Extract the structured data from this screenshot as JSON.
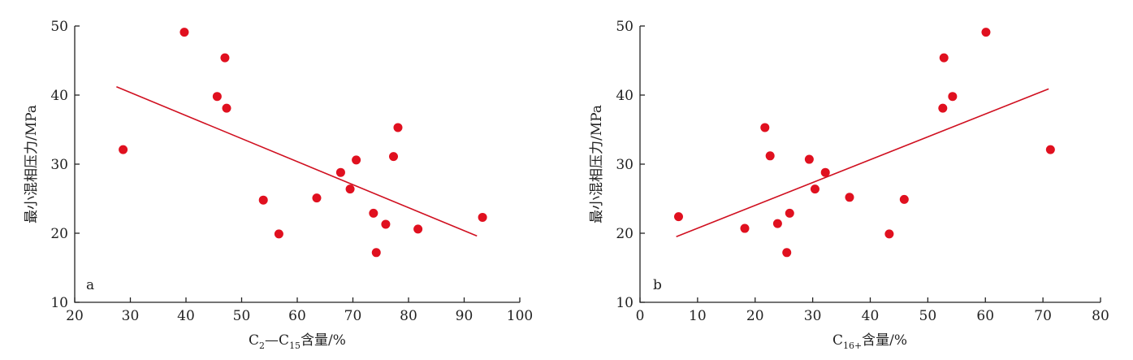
{
  "chart_data": [
    {
      "type": "scatter",
      "panel_label": "a",
      "xlabel_parts": {
        "main": "C",
        "sub1": "2",
        "dash": "—C",
        "sub2": "15",
        "rest": "含量/%"
      },
      "ylabel": "最小混相压力/MPa",
      "xlim": [
        20,
        100
      ],
      "ylim": [
        10,
        50
      ],
      "xticks": [
        20,
        30,
        40,
        50,
        60,
        70,
        80,
        90,
        100
      ],
      "yticks": [
        10,
        20,
        30,
        40,
        50
      ],
      "points": [
        {
          "x": 28.7,
          "y": 32.1
        },
        {
          "x": 39.7,
          "y": 49.1
        },
        {
          "x": 45.6,
          "y": 39.8
        },
        {
          "x": 47.0,
          "y": 45.4
        },
        {
          "x": 47.3,
          "y": 38.1
        },
        {
          "x": 53.9,
          "y": 24.8
        },
        {
          "x": 56.7,
          "y": 19.9
        },
        {
          "x": 63.5,
          "y": 25.1
        },
        {
          "x": 67.8,
          "y": 28.8
        },
        {
          "x": 69.5,
          "y": 26.4
        },
        {
          "x": 70.6,
          "y": 30.6
        },
        {
          "x": 73.7,
          "y": 22.9
        },
        {
          "x": 74.2,
          "y": 17.2
        },
        {
          "x": 75.9,
          "y": 21.3
        },
        {
          "x": 77.3,
          "y": 31.1
        },
        {
          "x": 78.1,
          "y": 35.3
        },
        {
          "x": 81.7,
          "y": 20.6
        },
        {
          "x": 93.3,
          "y": 22.3
        }
      ],
      "trendline": {
        "x": [
          27.5,
          92.3
        ],
        "y": [
          41.2,
          19.6
        ]
      },
      "grid": false,
      "point_color": "#e0101f",
      "line_color": "#d01020"
    },
    {
      "type": "scatter",
      "panel_label": "b",
      "xlabel_parts": {
        "main": "C",
        "sub1": "16+",
        "dash": "",
        "sub2": "",
        "rest": "含量/%"
      },
      "ylabel": "最小混相压力/MPa",
      "xlim": [
        0,
        80
      ],
      "ylim": [
        10,
        50
      ],
      "xticks": [
        0,
        10,
        20,
        30,
        40,
        50,
        60,
        70,
        80
      ],
      "yticks": [
        10,
        20,
        30,
        40,
        50
      ],
      "points": [
        {
          "x": 6.7,
          "y": 22.4
        },
        {
          "x": 18.2,
          "y": 20.7
        },
        {
          "x": 21.7,
          "y": 35.3
        },
        {
          "x": 22.6,
          "y": 31.2
        },
        {
          "x": 23.9,
          "y": 21.4
        },
        {
          "x": 25.5,
          "y": 17.2
        },
        {
          "x": 26.0,
          "y": 22.9
        },
        {
          "x": 29.4,
          "y": 30.7
        },
        {
          "x": 30.4,
          "y": 26.4
        },
        {
          "x": 32.2,
          "y": 28.8
        },
        {
          "x": 36.4,
          "y": 25.2
        },
        {
          "x": 43.3,
          "y": 19.9
        },
        {
          "x": 45.9,
          "y": 24.9
        },
        {
          "x": 52.6,
          "y": 38.1
        },
        {
          "x": 52.8,
          "y": 45.4
        },
        {
          "x": 54.3,
          "y": 39.8
        },
        {
          "x": 60.1,
          "y": 49.1
        },
        {
          "x": 71.3,
          "y": 32.1
        }
      ],
      "trendline": {
        "x": [
          6.3,
          71.0
        ],
        "y": [
          19.5,
          40.9
        ]
      },
      "grid": false,
      "point_color": "#e0101f",
      "line_color": "#d01020"
    }
  ]
}
